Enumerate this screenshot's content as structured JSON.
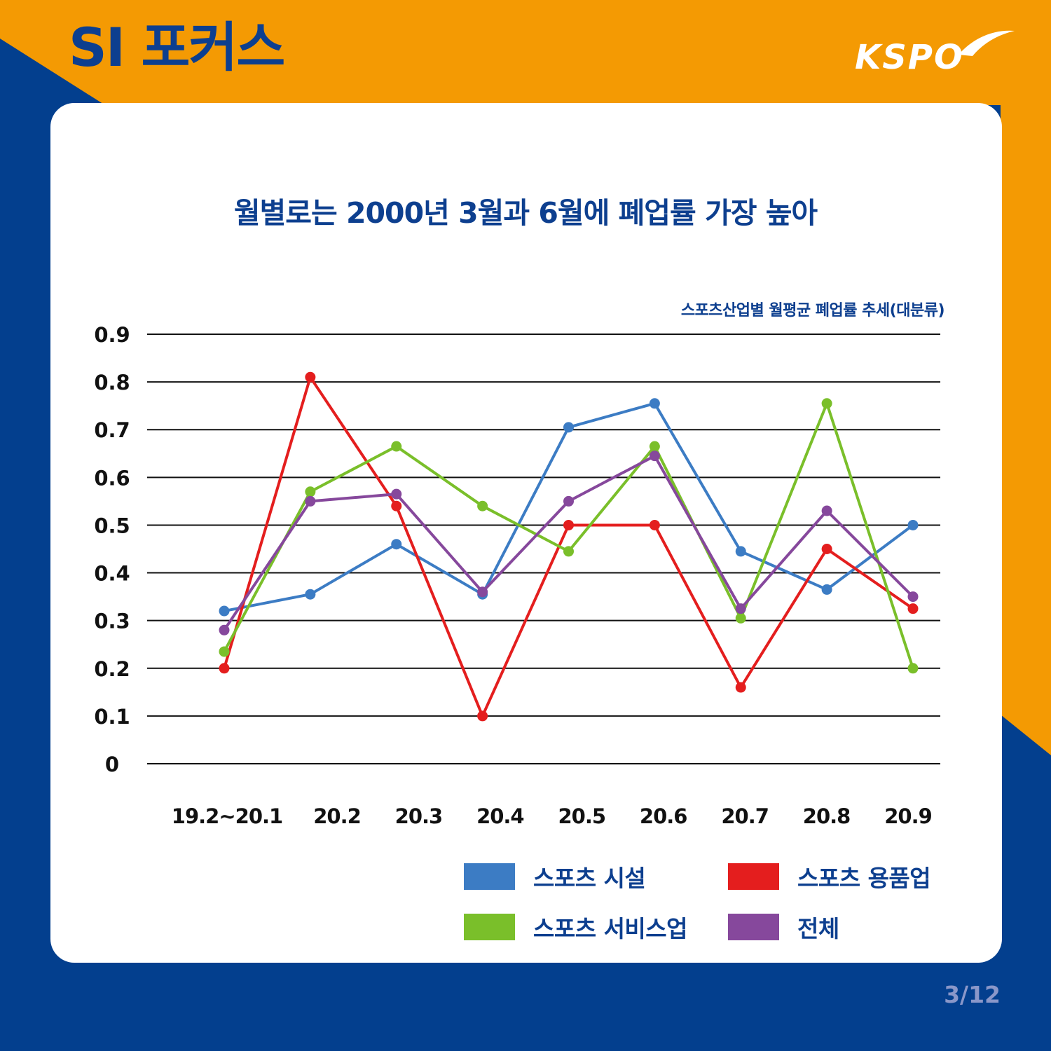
{
  "header": {
    "section_title": "SI 포커스",
    "logo_text": "KSPO"
  },
  "footer": {
    "page_indicator": "3/12"
  },
  "colors": {
    "navy": "#033f8e",
    "orange": "#f49a03",
    "title_blue": "#0d3f8f",
    "series_facility": "#3c7cc4",
    "series_goods": "#e41e1e",
    "series_service": "#7abf2a",
    "series_total": "#86489c"
  },
  "chart_data": {
    "type": "line",
    "title": "월별로는 2000년 3월과 6월에 폐업률 가장 높아",
    "subtitle": "스포츠산업별 월평균 폐업률 추세(대분류)",
    "xlabel": "",
    "ylabel": "",
    "categories": [
      "19.2~20.1",
      "20.2",
      "20.3",
      "20.4",
      "20.5",
      "20.6",
      "20.7",
      "20.8",
      "20.9"
    ],
    "y_ticks": [
      "0",
      "0.1",
      "0.2",
      "0.3",
      "0.4",
      "0.5",
      "0.6",
      "0.7",
      "0.8",
      "0.9"
    ],
    "ylim": [
      0,
      0.9
    ],
    "grid": true,
    "legend_position": "bottom-right",
    "series": [
      {
        "name": "스포츠 시설",
        "color": "#3c7cc4",
        "values": [
          0.32,
          0.355,
          0.46,
          0.355,
          0.705,
          0.755,
          0.445,
          0.365,
          0.5
        ]
      },
      {
        "name": "스포츠 용품업",
        "color": "#e41e1e",
        "values": [
          0.2,
          0.81,
          0.54,
          0.1,
          0.5,
          0.5,
          0.16,
          0.45,
          0.325
        ]
      },
      {
        "name": "스포츠 서비스업",
        "color": "#7abf2a",
        "values": [
          0.235,
          0.57,
          0.665,
          0.54,
          0.445,
          0.665,
          0.305,
          0.755,
          0.2
        ]
      },
      {
        "name": "전체",
        "color": "#86489c",
        "values": [
          0.28,
          0.55,
          0.565,
          0.36,
          0.55,
          0.645,
          0.325,
          0.53,
          0.35
        ]
      }
    ]
  }
}
